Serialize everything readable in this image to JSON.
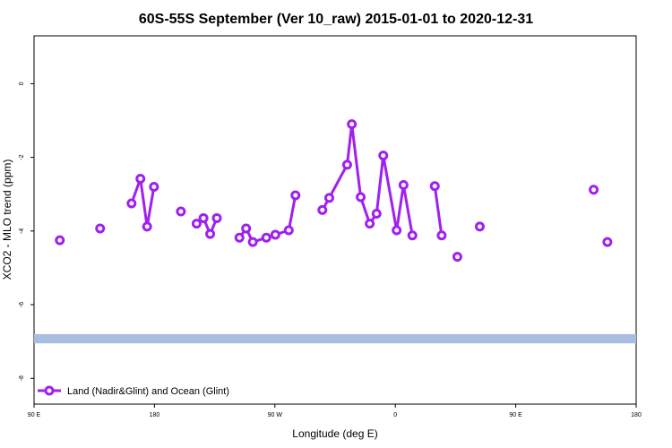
{
  "chart_data": {
    "type": "line",
    "title": "60S-55S September (Ver 10_raw)   2015-01-01 to 2020-12-31",
    "xlabel": "Longitude (deg E)",
    "ylabel": "XCO2 - MLO trend (ppm)",
    "xlim": [
      90,
      450
    ],
    "ylim": [
      -8.7,
      1.3
    ],
    "x_ticks": [
      {
        "value": 90,
        "label": "90 E"
      },
      {
        "value": 180,
        "label": "180"
      },
      {
        "value": 270,
        "label": "90 W"
      },
      {
        "value": 360,
        "label": "0"
      },
      {
        "value": 450,
        "label": "90 E"
      },
      {
        "value": 540,
        "label": "180"
      }
    ],
    "y_ticks": [
      {
        "value": 0,
        "label": "0"
      },
      {
        "value": -2,
        "label": "-2"
      },
      {
        "value": -4,
        "label": "-4"
      },
      {
        "value": -6,
        "label": "-6"
      },
      {
        "value": -8,
        "label": "-8"
      }
    ],
    "series": [
      {
        "name": "Land (Nadir&Glint) and Ocean (Glint)",
        "color": "#a020f0",
        "marker": "open-circle",
        "segments": [
          [
            {
              "x": 105.4,
              "y": -4.25
            }
          ],
          [
            {
              "x": 129.5,
              "y": -3.93
            }
          ],
          [
            {
              "x": 148.3,
              "y": -3.25
            },
            {
              "x": 153.6,
              "y": -2.58
            },
            {
              "x": 157.6,
              "y": -3.88
            },
            {
              "x": 161.7,
              "y": -2.8
            }
          ],
          [
            {
              "x": 177.8,
              "y": -3.47
            }
          ],
          [
            {
              "x": 187.2,
              "y": -3.8
            },
            {
              "x": 191.3,
              "y": -3.65
            },
            {
              "x": 195.3,
              "y": -4.08
            },
            {
              "x": 199.3,
              "y": -3.65
            }
          ],
          [
            {
              "x": 212.8,
              "y": -4.18
            },
            {
              "x": 216.8,
              "y": -3.93
            },
            {
              "x": 220.8,
              "y": -4.3
            },
            {
              "x": 228.9,
              "y": -4.18
            },
            {
              "x": 234.3,
              "y": -4.1
            },
            {
              "x": 242.3,
              "y": -3.98
            },
            {
              "x": 246.3,
              "y": -3.03
            }
          ],
          [
            {
              "x": 262.4,
              "y": -3.43
            },
            {
              "x": 266.5,
              "y": -3.1
            },
            {
              "x": 277.2,
              "y": -2.2
            },
            {
              "x": 280.0,
              "y": -1.1
            },
            {
              "x": 285.3,
              "y": -3.08
            },
            {
              "x": 290.7,
              "y": -3.8
            },
            {
              "x": 294.8,
              "y": -3.53
            },
            {
              "x": 298.8,
              "y": -1.95
            },
            {
              "x": 306.8,
              "y": -3.98
            },
            {
              "x": 310.9,
              "y": -2.75
            },
            {
              "x": 316.2,
              "y": -4.12
            }
          ],
          [
            {
              "x": 329.6,
              "y": -2.78
            },
            {
              "x": 333.7,
              "y": -4.12
            }
          ],
          [
            {
              "x": 343.1,
              "y": -4.7
            }
          ],
          [
            {
              "x": 356.5,
              "y": -3.88
            }
          ],
          [
            {
              "x": 424.6,
              "y": -2.88
            }
          ],
          [
            {
              "x": 432.8,
              "y": -4.3
            }
          ],
          [
            {
              "x": 459.6,
              "y": -4.25
            }
          ],
          [
            {
              "x": 483.7,
              "y": -3.93
            }
          ],
          [
            {
              "x": 502.5,
              "y": -3.25
            },
            {
              "x": 507.8,
              "y": -2.58
            },
            {
              "x": 511.9,
              "y": -3.88
            },
            {
              "x": 515.9,
              "y": -2.8
            }
          ],
          [
            {
              "x": 532.0,
              "y": -3.47
            }
          ]
        ]
      }
    ],
    "band": {
      "y_from": -7.05,
      "y_to": -6.8,
      "color": "#a8bee0"
    },
    "legend": {
      "position": "bottom-left"
    },
    "grid": false
  }
}
